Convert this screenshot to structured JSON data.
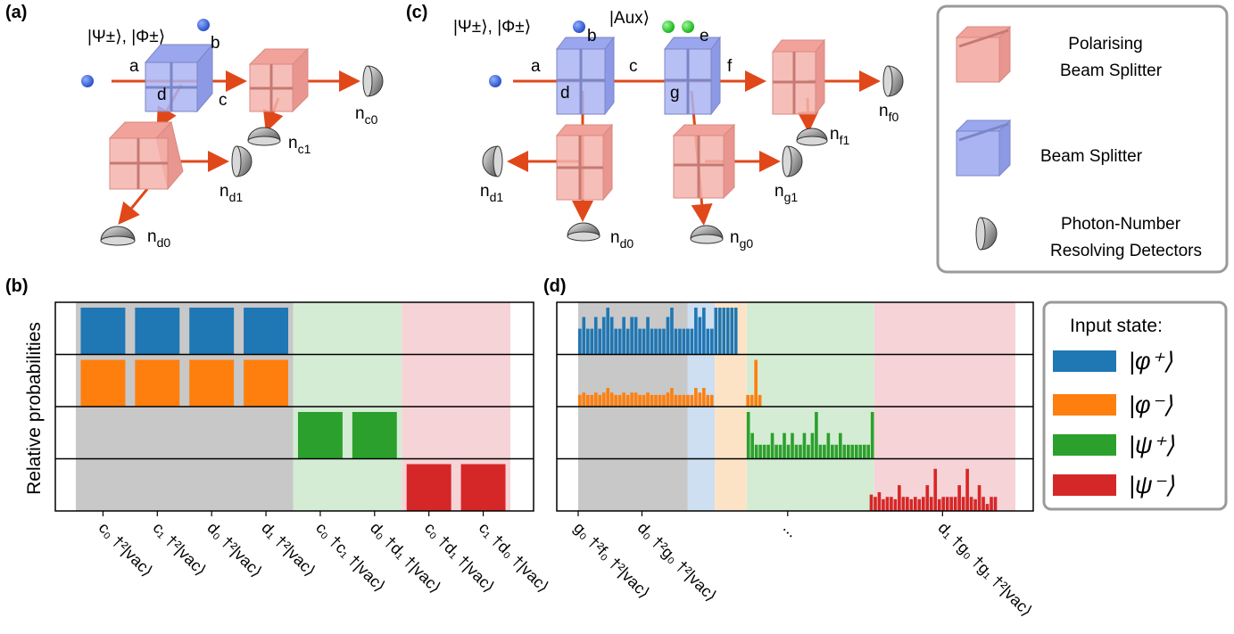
{
  "panel_labels": {
    "a": "(a)",
    "b": "(b)",
    "c": "(c)",
    "d": "(d)"
  },
  "setup_a": {
    "input_state": "|Ψ±⟩, |Φ±⟩",
    "modes": [
      "a",
      "b",
      "c",
      "d"
    ],
    "detectors": [
      {
        "label": "n",
        "sub": "c0"
      },
      {
        "label": "n",
        "sub": "c1"
      },
      {
        "label": "n",
        "sub": "d1"
      },
      {
        "label": "n",
        "sub": "d0"
      }
    ]
  },
  "setup_c": {
    "input_state": "|Ψ±⟩, |Φ±⟩",
    "aux_state": "|Aux⟩",
    "modes": [
      "a",
      "b",
      "c",
      "d",
      "e",
      "f",
      "g"
    ],
    "detectors": [
      {
        "label": "n",
        "sub": "f0"
      },
      {
        "label": "n",
        "sub": "f1"
      },
      {
        "label": "n",
        "sub": "d1"
      },
      {
        "label": "n",
        "sub": "d0"
      },
      {
        "label": "n",
        "sub": "g1"
      },
      {
        "label": "n",
        "sub": "g0"
      }
    ]
  },
  "component_legend": {
    "items": [
      {
        "name": "polarising-beam-splitter",
        "lines": [
          "Polarising",
          "Beam Splitter"
        ],
        "color": "#f2a7a0"
      },
      {
        "name": "beam-splitter",
        "lines": [
          "Beam Splitter"
        ],
        "color": "#a9b4f0"
      },
      {
        "name": "pnr-detector",
        "lines": [
          "Photon-Number",
          "Resolving Detectors"
        ],
        "color": "#555555"
      }
    ]
  },
  "state_legend": {
    "title": "Input state:",
    "entries": [
      {
        "label": "|φ⁺⟩",
        "color": "#1f77b4"
      },
      {
        "label": "|φ⁻⟩",
        "color": "#ff7f0e"
      },
      {
        "label": "|ψ⁺⟩",
        "color": "#2ca02c"
      },
      {
        "label": "|ψ⁻⟩",
        "color": "#d62728"
      }
    ]
  },
  "chart_data": [
    {
      "type": "bar",
      "panel": "(b)",
      "ylabel": "Relative probabilities",
      "categories": [
        "c₀ †²|vac⟩",
        "c₁ †²|vac⟩",
        "d₀ †²|vac⟩",
        "d₁ †²|vac⟩",
        "c₀ †c₁ †|vac⟩",
        "d₀ †d₁ †|vac⟩",
        "c₀ †d₁ †|vac⟩",
        "c₁ †d₀ †|vac⟩"
      ],
      "series": [
        {
          "name": "|φ⁺⟩",
          "values": [
            1,
            1,
            1,
            1,
            0,
            0,
            0,
            0
          ]
        },
        {
          "name": "|φ⁻⟩",
          "values": [
            1,
            1,
            1,
            1,
            0,
            0,
            0,
            0
          ]
        },
        {
          "name": "|ψ⁺⟩",
          "values": [
            0,
            0,
            0,
            0,
            1,
            1,
            0,
            0
          ]
        },
        {
          "name": "|ψ⁻⟩",
          "values": [
            0,
            0,
            0,
            0,
            0,
            0,
            1,
            1
          ]
        }
      ],
      "background_regions": [
        {
          "from": 0,
          "to": 4,
          "color": "#c8c8c8"
        },
        {
          "from": 4,
          "to": 6,
          "color": "#d4ecd4"
        },
        {
          "from": 6,
          "to": 8,
          "color": "#f6d3d6"
        }
      ]
    },
    {
      "type": "bar",
      "panel": "(d)",
      "tick_labels": [
        "g₀ †²f₀ †²|vac⟩",
        "d₀ †²g₀ †²|vac⟩",
        "...",
        "d₁ †g₀ †g₁ †²|vac⟩"
      ],
      "tick_positions": [
        0,
        14,
        46,
        80
      ],
      "bin_count": 89,
      "series": [
        {
          "name": "|φ⁺⟩",
          "start": 0,
          "values": [
            0.55,
            0.8,
            0.55,
            0.55,
            0.8,
            0.55,
            0.8,
            1.0,
            0.8,
            0.55,
            0.55,
            0.8,
            0.55,
            0.8,
            0.8,
            0.55,
            0.55,
            0.8,
            0.55,
            0.55,
            0.55,
            0.55,
            0.8,
            1.0,
            0.55,
            0.55,
            0.55,
            0.55,
            0.55,
            1.0,
            0.8,
            1.0,
            0.55,
            0.55,
            1.0,
            1.0,
            1.0,
            1.0,
            1.0,
            1.0
          ]
        },
        {
          "name": "|φ⁻⟩",
          "start": 0,
          "values": [
            0.25,
            0.3,
            0.25,
            0.25,
            0.3,
            0.25,
            0.3,
            0.4,
            0.3,
            0.25,
            0.25,
            0.3,
            0.25,
            0.3,
            0.3,
            0.25,
            0.25,
            0.3,
            0.25,
            0.25,
            0.25,
            0.25,
            0.3,
            0.4,
            0.25,
            0.25,
            0.25,
            0.25,
            0.25,
            0.4,
            0.3,
            0.4,
            0.25,
            0.25,
            0,
            0,
            0,
            0,
            0,
            0,
            0,
            0,
            0.25,
            0.25,
            1.0,
            0.25
          ]
        },
        {
          "name": "|ψ⁺⟩",
          "start": 33,
          "values": [
            1.0,
            0.55,
            0.3,
            0.3,
            0.3,
            0.3,
            0.55,
            0.3,
            0.3,
            0.55,
            0.3,
            0.55,
            0.3,
            0.3,
            0.55,
            0.3,
            0.55,
            1.0,
            0.3,
            0.3,
            0.55,
            0.3,
            0.3,
            0.55,
            0.3,
            0.3,
            0.3,
            0.3,
            0.3,
            0.3,
            0.3,
            1.0
          ]
        },
        {
          "name": "|ψ⁻⟩",
          "start": 60,
          "values": [
            0.35,
            0.3,
            0.4,
            0.25,
            0.3,
            0.3,
            0.25,
            0.55,
            0.3,
            0.3,
            0.25,
            0.3,
            0.25,
            0.3,
            0.55,
            0.3,
            0.9,
            0.25,
            0.3,
            0.3,
            0.3,
            0.3,
            0.55,
            0.3,
            0.9,
            0.3,
            0.25,
            0.55,
            0.3,
            0.15,
            0.3,
            0.3
          ]
        }
      ],
      "background_regions": [
        {
          "from": 0,
          "to": 24,
          "color": "#c8c8c8"
        },
        {
          "from": 24,
          "to": 30,
          "color": "#cddff0"
        },
        {
          "from": 30,
          "to": 37,
          "color": "#fde3c6"
        },
        {
          "from": 37,
          "to": 65,
          "color": "#d4ecd4"
        },
        {
          "from": 65,
          "to": 96,
          "color": "#f6d3d6"
        }
      ]
    }
  ]
}
